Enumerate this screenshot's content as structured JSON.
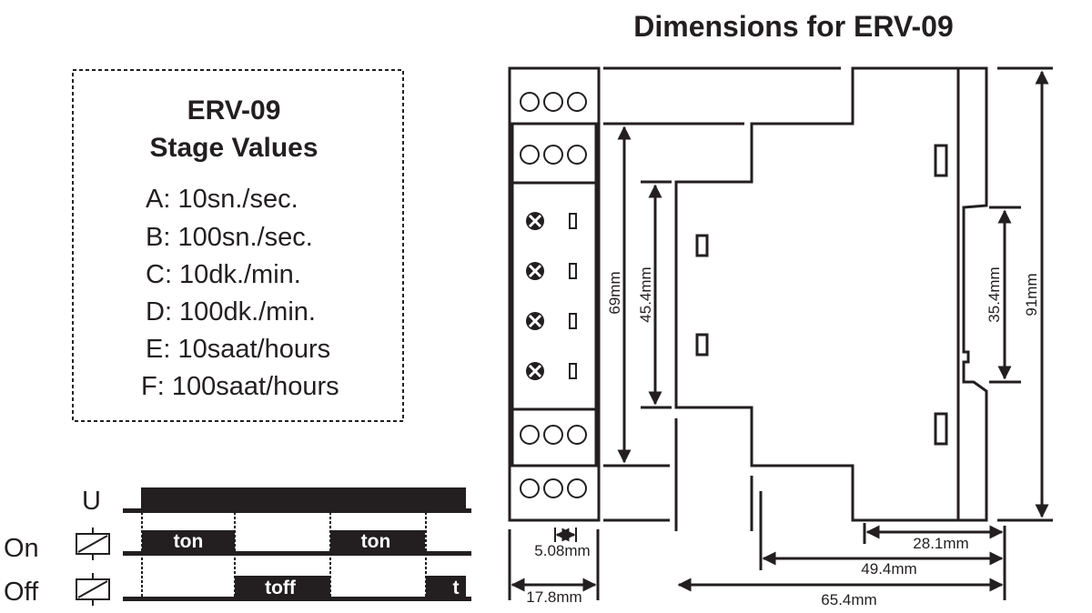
{
  "dimensions_title": "Dimensions for ERV-09",
  "stage_box": {
    "title": "ERV-09",
    "subtitle": "Stage Values",
    "items": [
      "A: 10sn./sec.",
      "B: 100sn./sec.",
      "C: 10dk./min.",
      "D: 100dk./min.",
      "E: 10saat/hours",
      "F: 100saat/hours"
    ]
  },
  "edge_fragment": "l",
  "timing": {
    "rows": [
      "U",
      "On",
      "Off"
    ],
    "on_labels": [
      "ton",
      "ton"
    ],
    "off_labels": [
      "toff",
      "t"
    ]
  },
  "dims": {
    "h69": "69mm",
    "h45": "45.4mm",
    "h35": "35.4mm",
    "h91": "91mm",
    "w508": "5.08mm",
    "w178": "17.8mm",
    "w281": "28.1mm",
    "w494": "49.4mm",
    "w654": "65.4mm"
  },
  "colors": {
    "ink": "#231f20",
    "background": "#ffffff"
  }
}
